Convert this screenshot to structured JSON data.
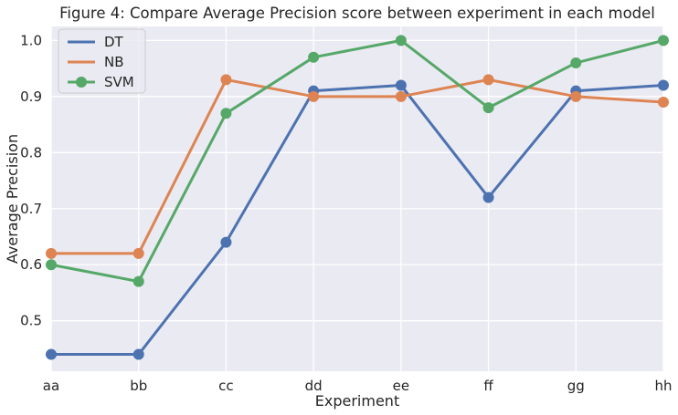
{
  "chart_data": {
    "type": "line",
    "title": "Figure 4: Compare Average Precision score between experiment in each model",
    "xlabel": "Experiment",
    "ylabel": "Average Precision",
    "categories": [
      "aa",
      "bb",
      "cc",
      "dd",
      "ee",
      "ff",
      "gg",
      "hh"
    ],
    "ylim": [
      0.41,
      1.025
    ],
    "yticks": [
      0.5,
      0.6,
      0.7,
      0.8,
      0.9,
      1.0
    ],
    "ytick_labels": [
      "0.5",
      "0.6",
      "0.7",
      "0.8",
      "0.9",
      "1.0"
    ],
    "grid": true,
    "legend": "top-left",
    "series": [
      {
        "name": "DT",
        "color": "#4c72b0",
        "values": [
          0.44,
          0.44,
          0.64,
          0.91,
          0.92,
          0.72,
          0.91,
          0.92
        ]
      },
      {
        "name": "NB",
        "color": "#dd8452",
        "values": [
          0.62,
          0.62,
          0.93,
          0.9,
          0.9,
          0.93,
          0.9,
          0.89
        ]
      },
      {
        "name": "SVM",
        "color": "#55a868",
        "values": [
          0.6,
          0.57,
          0.87,
          0.97,
          1.0,
          0.88,
          0.96,
          1.0
        ]
      }
    ]
  }
}
